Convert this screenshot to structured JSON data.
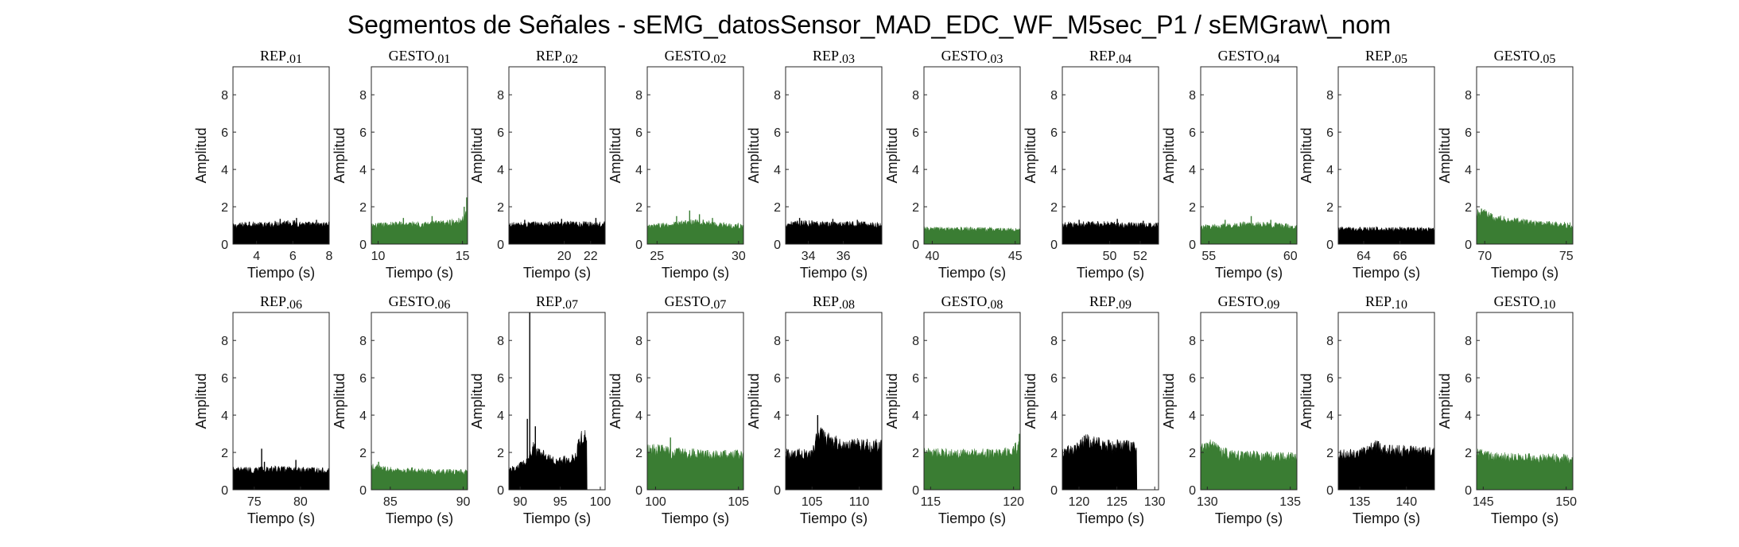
{
  "figure": {
    "title": "Segmentos de Señales - sEMG_datosSensor_MAD_EDC_WF_M5sec_P1 / sEMGraw\\_nom"
  },
  "colors": {
    "rep": "#000000",
    "gesto": "#3a7d33",
    "axis": "#262626"
  },
  "chart_data": [
    {
      "type": "area",
      "title": "REP_01",
      "kind": "rep",
      "xlim": [
        2.7,
        8
      ],
      "xticks": [
        4,
        6,
        8
      ],
      "ylim": [
        0,
        9.5
      ],
      "yticks": [
        0,
        2,
        4,
        6,
        8
      ],
      "xlabel": "Tiempo (s)",
      "ylabel": "Amplitud",
      "x": [
        2.7,
        3.5,
        4.5,
        5.5,
        6.5,
        7.5,
        8
      ],
      "y": [
        0.9,
        1.0,
        0.95,
        1.1,
        1.0,
        0.95,
        1.0
      ],
      "spikes": [
        [
          3.6,
          1.2
        ],
        [
          5.3,
          1.35
        ],
        [
          6.2,
          1.4
        ],
        [
          7.3,
          1.3
        ]
      ]
    },
    {
      "type": "area",
      "title": "GESTO_01",
      "kind": "gesto",
      "xlim": [
        9.6,
        15.3
      ],
      "xticks": [
        10,
        15
      ],
      "ylim": [
        0,
        9.5
      ],
      "yticks": [
        0,
        2,
        4,
        6,
        8
      ],
      "xlabel": "Tiempo (s)",
      "ylabel": "Amplitud",
      "x": [
        9.6,
        11,
        12.5,
        14,
        15,
        15.3
      ],
      "y": [
        0.9,
        1.0,
        1.0,
        1.05,
        1.2,
        1.6
      ],
      "spikes": [
        [
          11.5,
          1.4
        ],
        [
          13.2,
          1.5
        ],
        [
          15.1,
          2.0
        ],
        [
          15.25,
          2.5
        ]
      ]
    },
    {
      "type": "area",
      "title": "REP_02",
      "kind": "rep",
      "xlim": [
        15.8,
        23.1
      ],
      "xticks": [
        20,
        22
      ],
      "ylim": [
        0,
        9.5
      ],
      "yticks": [
        0,
        2,
        4,
        6,
        8
      ],
      "xlabel": "Tiempo (s)",
      "ylabel": "Amplitud",
      "x": [
        15.8,
        17.5,
        19.5,
        21.5,
        23.1
      ],
      "y": [
        0.95,
        1.0,
        1.0,
        1.0,
        1.0
      ],
      "spikes": [
        [
          17,
          1.3
        ],
        [
          19.8,
          1.35
        ],
        [
          22.4,
          1.4
        ]
      ]
    },
    {
      "type": "area",
      "title": "GESTO_02",
      "kind": "gesto",
      "xlim": [
        24.4,
        30.3
      ],
      "xticks": [
        25,
        30
      ],
      "ylim": [
        0,
        9.5
      ],
      "yticks": [
        0,
        2,
        4,
        6,
        8
      ],
      "xlabel": "Tiempo (s)",
      "ylabel": "Amplitud",
      "x": [
        24.4,
        26,
        27.5,
        29,
        30.3
      ],
      "y": [
        0.85,
        1.0,
        1.1,
        0.95,
        0.9
      ],
      "spikes": [
        [
          26.2,
          1.5
        ],
        [
          27,
          1.8
        ],
        [
          27.6,
          1.6
        ],
        [
          28.4,
          1.4
        ]
      ]
    },
    {
      "type": "area",
      "title": "REP_03",
      "kind": "rep",
      "xlim": [
        32.7,
        38.2
      ],
      "xticks": [
        34,
        36
      ],
      "ylim": [
        0,
        9.5
      ],
      "yticks": [
        0,
        2,
        4,
        6,
        8
      ],
      "xlabel": "Tiempo (s)",
      "ylabel": "Amplitud",
      "x": [
        32.7,
        34,
        35.5,
        37,
        38.2
      ],
      "y": [
        1.0,
        1.05,
        1.0,
        1.0,
        0.95
      ],
      "spikes": [
        [
          33.5,
          1.4
        ],
        [
          35.4,
          1.35
        ],
        [
          36.8,
          1.3
        ]
      ]
    },
    {
      "type": "area",
      "title": "GESTO_03",
      "kind": "gesto",
      "xlim": [
        39.5,
        45.3
      ],
      "xticks": [
        40,
        45
      ],
      "ylim": [
        0,
        9.5
      ],
      "yticks": [
        0,
        2,
        4,
        6,
        8
      ],
      "xlabel": "Tiempo (s)",
      "ylabel": "Amplitud",
      "x": [
        39.5,
        41,
        42.5,
        44,
        45.3
      ],
      "y": [
        0.75,
        0.75,
        0.75,
        0.72,
        0.72
      ],
      "spikes": [
        [
          41.5,
          0.9
        ],
        [
          43.5,
          0.85
        ]
      ]
    },
    {
      "type": "area",
      "title": "REP_04",
      "kind": "rep",
      "xlim": [
        46.9,
        53.2
      ],
      "xticks": [
        50,
        52
      ],
      "ylim": [
        0,
        9.5
      ],
      "yticks": [
        0,
        2,
        4,
        6,
        8
      ],
      "xlabel": "Tiempo (s)",
      "ylabel": "Amplitud",
      "x": [
        46.9,
        48.5,
        50,
        51.5,
        53.2
      ],
      "y": [
        0.95,
        1.0,
        1.0,
        0.95,
        0.95
      ],
      "spikes": [
        [
          48,
          1.3
        ],
        [
          50.5,
          1.35
        ],
        [
          52.2,
          1.25
        ]
      ]
    },
    {
      "type": "area",
      "title": "GESTO_04",
      "kind": "gesto",
      "xlim": [
        54.5,
        60.4
      ],
      "xticks": [
        55,
        60
      ],
      "ylim": [
        0,
        9.5
      ],
      "yticks": [
        0,
        2,
        4,
        6,
        8
      ],
      "xlabel": "Tiempo (s)",
      "ylabel": "Amplitud",
      "x": [
        54.5,
        56,
        57.5,
        59,
        60.4
      ],
      "y": [
        0.85,
        0.9,
        1.0,
        0.95,
        0.85
      ],
      "spikes": [
        [
          56,
          1.3
        ],
        [
          57.6,
          1.5
        ],
        [
          58.8,
          1.3
        ]
      ]
    },
    {
      "type": "area",
      "title": "REP_05",
      "kind": "rep",
      "xlim": [
        62.6,
        67.9
      ],
      "xticks": [
        64,
        66
      ],
      "ylim": [
        0,
        9.5
      ],
      "yticks": [
        0,
        2,
        4,
        6,
        8
      ],
      "xlabel": "Tiempo (s)",
      "ylabel": "Amplitud",
      "x": [
        62.6,
        64,
        65.5,
        67,
        67.9
      ],
      "y": [
        0.75,
        0.75,
        0.75,
        0.75,
        0.75
      ],
      "spikes": [
        [
          63.8,
          0.9
        ],
        [
          66,
          0.92
        ]
      ]
    },
    {
      "type": "area",
      "title": "GESTO_05",
      "kind": "gesto",
      "xlim": [
        69.5,
        75.4
      ],
      "xticks": [
        70,
        75
      ],
      "ylim": [
        0,
        9.5
      ],
      "yticks": [
        0,
        2,
        4,
        6,
        8
      ],
      "xlabel": "Tiempo (s)",
      "ylabel": "Amplitud",
      "x": [
        69.5,
        69.9,
        70.5,
        71.5,
        73,
        75.4
      ],
      "y": [
        1.5,
        1.6,
        1.3,
        1.2,
        1.05,
        0.95
      ],
      "spikes": [
        [
          69.8,
          1.9
        ],
        [
          70.3,
          1.5
        ]
      ]
    },
    {
      "type": "area",
      "title": "REP_06",
      "kind": "rep",
      "xlim": [
        72.7,
        83.1
      ],
      "xticks": [
        75,
        80
      ],
      "ylim": [
        0,
        9.5
      ],
      "yticks": [
        0,
        2,
        4,
        6,
        8
      ],
      "xlabel": "Tiempo (s)",
      "ylabel": "Amplitud",
      "x": [
        72.7,
        75,
        77.5,
        80,
        83.1
      ],
      "y": [
        1.0,
        1.0,
        1.05,
        1.0,
        0.95
      ],
      "spikes": [
        [
          75.8,
          2.2
        ],
        [
          76.1,
          1.5
        ],
        [
          79.5,
          1.6
        ]
      ]
    },
    {
      "type": "area",
      "title": "GESTO_06",
      "kind": "gesto",
      "xlim": [
        83.7,
        90.3
      ],
      "xticks": [
        85,
        90
      ],
      "ylim": [
        0,
        9.5
      ],
      "yticks": [
        0,
        2,
        4,
        6,
        8
      ],
      "xlabel": "Tiempo (s)",
      "ylabel": "Amplitud",
      "x": [
        83.7,
        85,
        86.5,
        88,
        90.3
      ],
      "y": [
        1.15,
        1.0,
        0.95,
        0.9,
        0.9
      ],
      "spikes": [
        [
          84.2,
          1.5
        ],
        [
          86.5,
          1.2
        ]
      ]
    },
    {
      "type": "area",
      "title": "REP_07",
      "kind": "rep",
      "xlim": [
        88.6,
        100.6
      ],
      "xticks": [
        90,
        95,
        100
      ],
      "ylim": [
        0,
        9.5
      ],
      "yticks": [
        0,
        2,
        4,
        6,
        8
      ],
      "xlabel": "Tiempo (s)",
      "ylabel": "Amplitud",
      "x": [
        88.6,
        90,
        91,
        91.6,
        92.2,
        93,
        94.5,
        95.5,
        96.5,
        97,
        97.3,
        97.6,
        98,
        98.3,
        98.31,
        100.6
      ],
      "y": [
        1.0,
        1.2,
        1.4,
        2.2,
        1.8,
        1.8,
        1.4,
        1.5,
        1.6,
        1.7,
        2.4,
        2.6,
        2.7,
        2.7,
        0,
        0
      ],
      "spikes": [
        [
          90.9,
          3.8
        ],
        [
          91.2,
          9.5
        ],
        [
          91.9,
          3.4
        ],
        [
          92.3,
          2.2
        ]
      ]
    },
    {
      "type": "area",
      "title": "GESTO_07",
      "kind": "gesto",
      "xlim": [
        99.5,
        105.3
      ],
      "xticks": [
        100,
        105
      ],
      "ylim": [
        0,
        9.5
      ],
      "yticks": [
        0,
        2,
        4,
        6,
        8
      ],
      "xlabel": "Tiempo (s)",
      "ylabel": "Amplitud",
      "x": [
        99.5,
        100.2,
        101,
        102.5,
        104,
        105.3
      ],
      "y": [
        2.0,
        2.0,
        1.85,
        1.8,
        1.75,
        1.75
      ],
      "spikes": [
        [
          100.4,
          2.4
        ],
        [
          100.9,
          2.8
        ]
      ]
    },
    {
      "type": "area",
      "title": "REP_08",
      "kind": "rep",
      "xlim": [
        102.2,
        112.4
      ],
      "xticks": [
        105,
        110
      ],
      "ylim": [
        0,
        9.5
      ],
      "yticks": [
        0,
        2,
        4,
        6,
        8
      ],
      "xlabel": "Tiempo (s)",
      "ylabel": "Amplitud",
      "x": [
        102.2,
        105,
        105.4,
        105.8,
        106.5,
        108,
        110,
        112.4
      ],
      "y": [
        1.8,
        1.8,
        2.4,
        3.0,
        2.6,
        2.3,
        2.3,
        2.2
      ],
      "spikes": [
        [
          105.6,
          4.0
        ],
        [
          105.9,
          3.2
        ]
      ]
    },
    {
      "type": "area",
      "title": "GESTO_08",
      "kind": "gesto",
      "xlim": [
        114.6,
        120.4
      ],
      "xticks": [
        115,
        120
      ],
      "ylim": [
        0,
        9.5
      ],
      "yticks": [
        0,
        2,
        4,
        6,
        8
      ],
      "xlabel": "Tiempo (s)",
      "ylabel": "Amplitud",
      "x": [
        114.6,
        116,
        117.5,
        119,
        119.8,
        120.4
      ],
      "y": [
        1.85,
        1.8,
        1.8,
        1.8,
        1.9,
        2.2
      ],
      "spikes": [
        [
          120.1,
          2.5
        ],
        [
          120.35,
          3.0
        ]
      ]
    },
    {
      "type": "area",
      "title": "REP_09",
      "kind": "rep",
      "xlim": [
        117.8,
        130.5
      ],
      "xticks": [
        120,
        125,
        130
      ],
      "ylim": [
        0,
        9.5
      ],
      "yticks": [
        0,
        2,
        4,
        6,
        8
      ],
      "xlabel": "Tiempo (s)",
      "ylabel": "Amplitud",
      "x": [
        117.8,
        119.5,
        120,
        121,
        122.5,
        124,
        126,
        127.6,
        127.61,
        130.5
      ],
      "y": [
        1.9,
        2.0,
        2.2,
        2.5,
        2.3,
        2.2,
        2.2,
        2.2,
        0,
        0
      ],
      "spikes": [
        [
          120.7,
          2.9
        ],
        [
          121.2,
          2.7
        ]
      ]
    },
    {
      "type": "area",
      "title": "GESTO_09",
      "kind": "gesto",
      "xlim": [
        129.6,
        135.4
      ],
      "xticks": [
        130,
        135
      ],
      "ylim": [
        0,
        9.5
      ],
      "yticks": [
        0,
        2,
        4,
        6,
        8
      ],
      "xlabel": "Tiempo (s)",
      "ylabel": "Amplitud",
      "x": [
        129.6,
        130.2,
        131,
        132,
        133.5,
        135.4
      ],
      "y": [
        2.1,
        2.2,
        1.85,
        1.7,
        1.7,
        1.65
      ],
      "spikes": [
        [
          130,
          2.5
        ],
        [
          130.3,
          2.3
        ]
      ]
    },
    {
      "type": "area",
      "title": "REP_10",
      "kind": "rep",
      "xlim": [
        132.7,
        143
      ],
      "xticks": [
        135,
        140
      ],
      "ylim": [
        0,
        9.5
      ],
      "yticks": [
        0,
        2,
        4,
        6,
        8
      ],
      "xlabel": "Tiempo (s)",
      "ylabel": "Amplitud",
      "x": [
        132.7,
        135,
        136.5,
        138,
        140,
        143
      ],
      "y": [
        1.75,
        1.8,
        2.2,
        2.0,
        1.95,
        1.85
      ],
      "spikes": [
        [
          137,
          2.6
        ],
        [
          138.2,
          2.4
        ]
      ]
    },
    {
      "type": "area",
      "title": "GESTO_10",
      "kind": "gesto",
      "xlim": [
        144.6,
        150.4
      ],
      "xticks": [
        145,
        150
      ],
      "ylim": [
        0,
        9.5
      ],
      "yticks": [
        0,
        2,
        4,
        6,
        8
      ],
      "xlabel": "Tiempo (s)",
      "ylabel": "Amplitud",
      "x": [
        144.6,
        145.2,
        146,
        147.5,
        149,
        150.4
      ],
      "y": [
        1.85,
        1.75,
        1.65,
        1.6,
        1.6,
        1.55
      ],
      "spikes": [
        [
          144.9,
          2.1
        ],
        [
          145.4,
          1.9
        ]
      ]
    }
  ]
}
